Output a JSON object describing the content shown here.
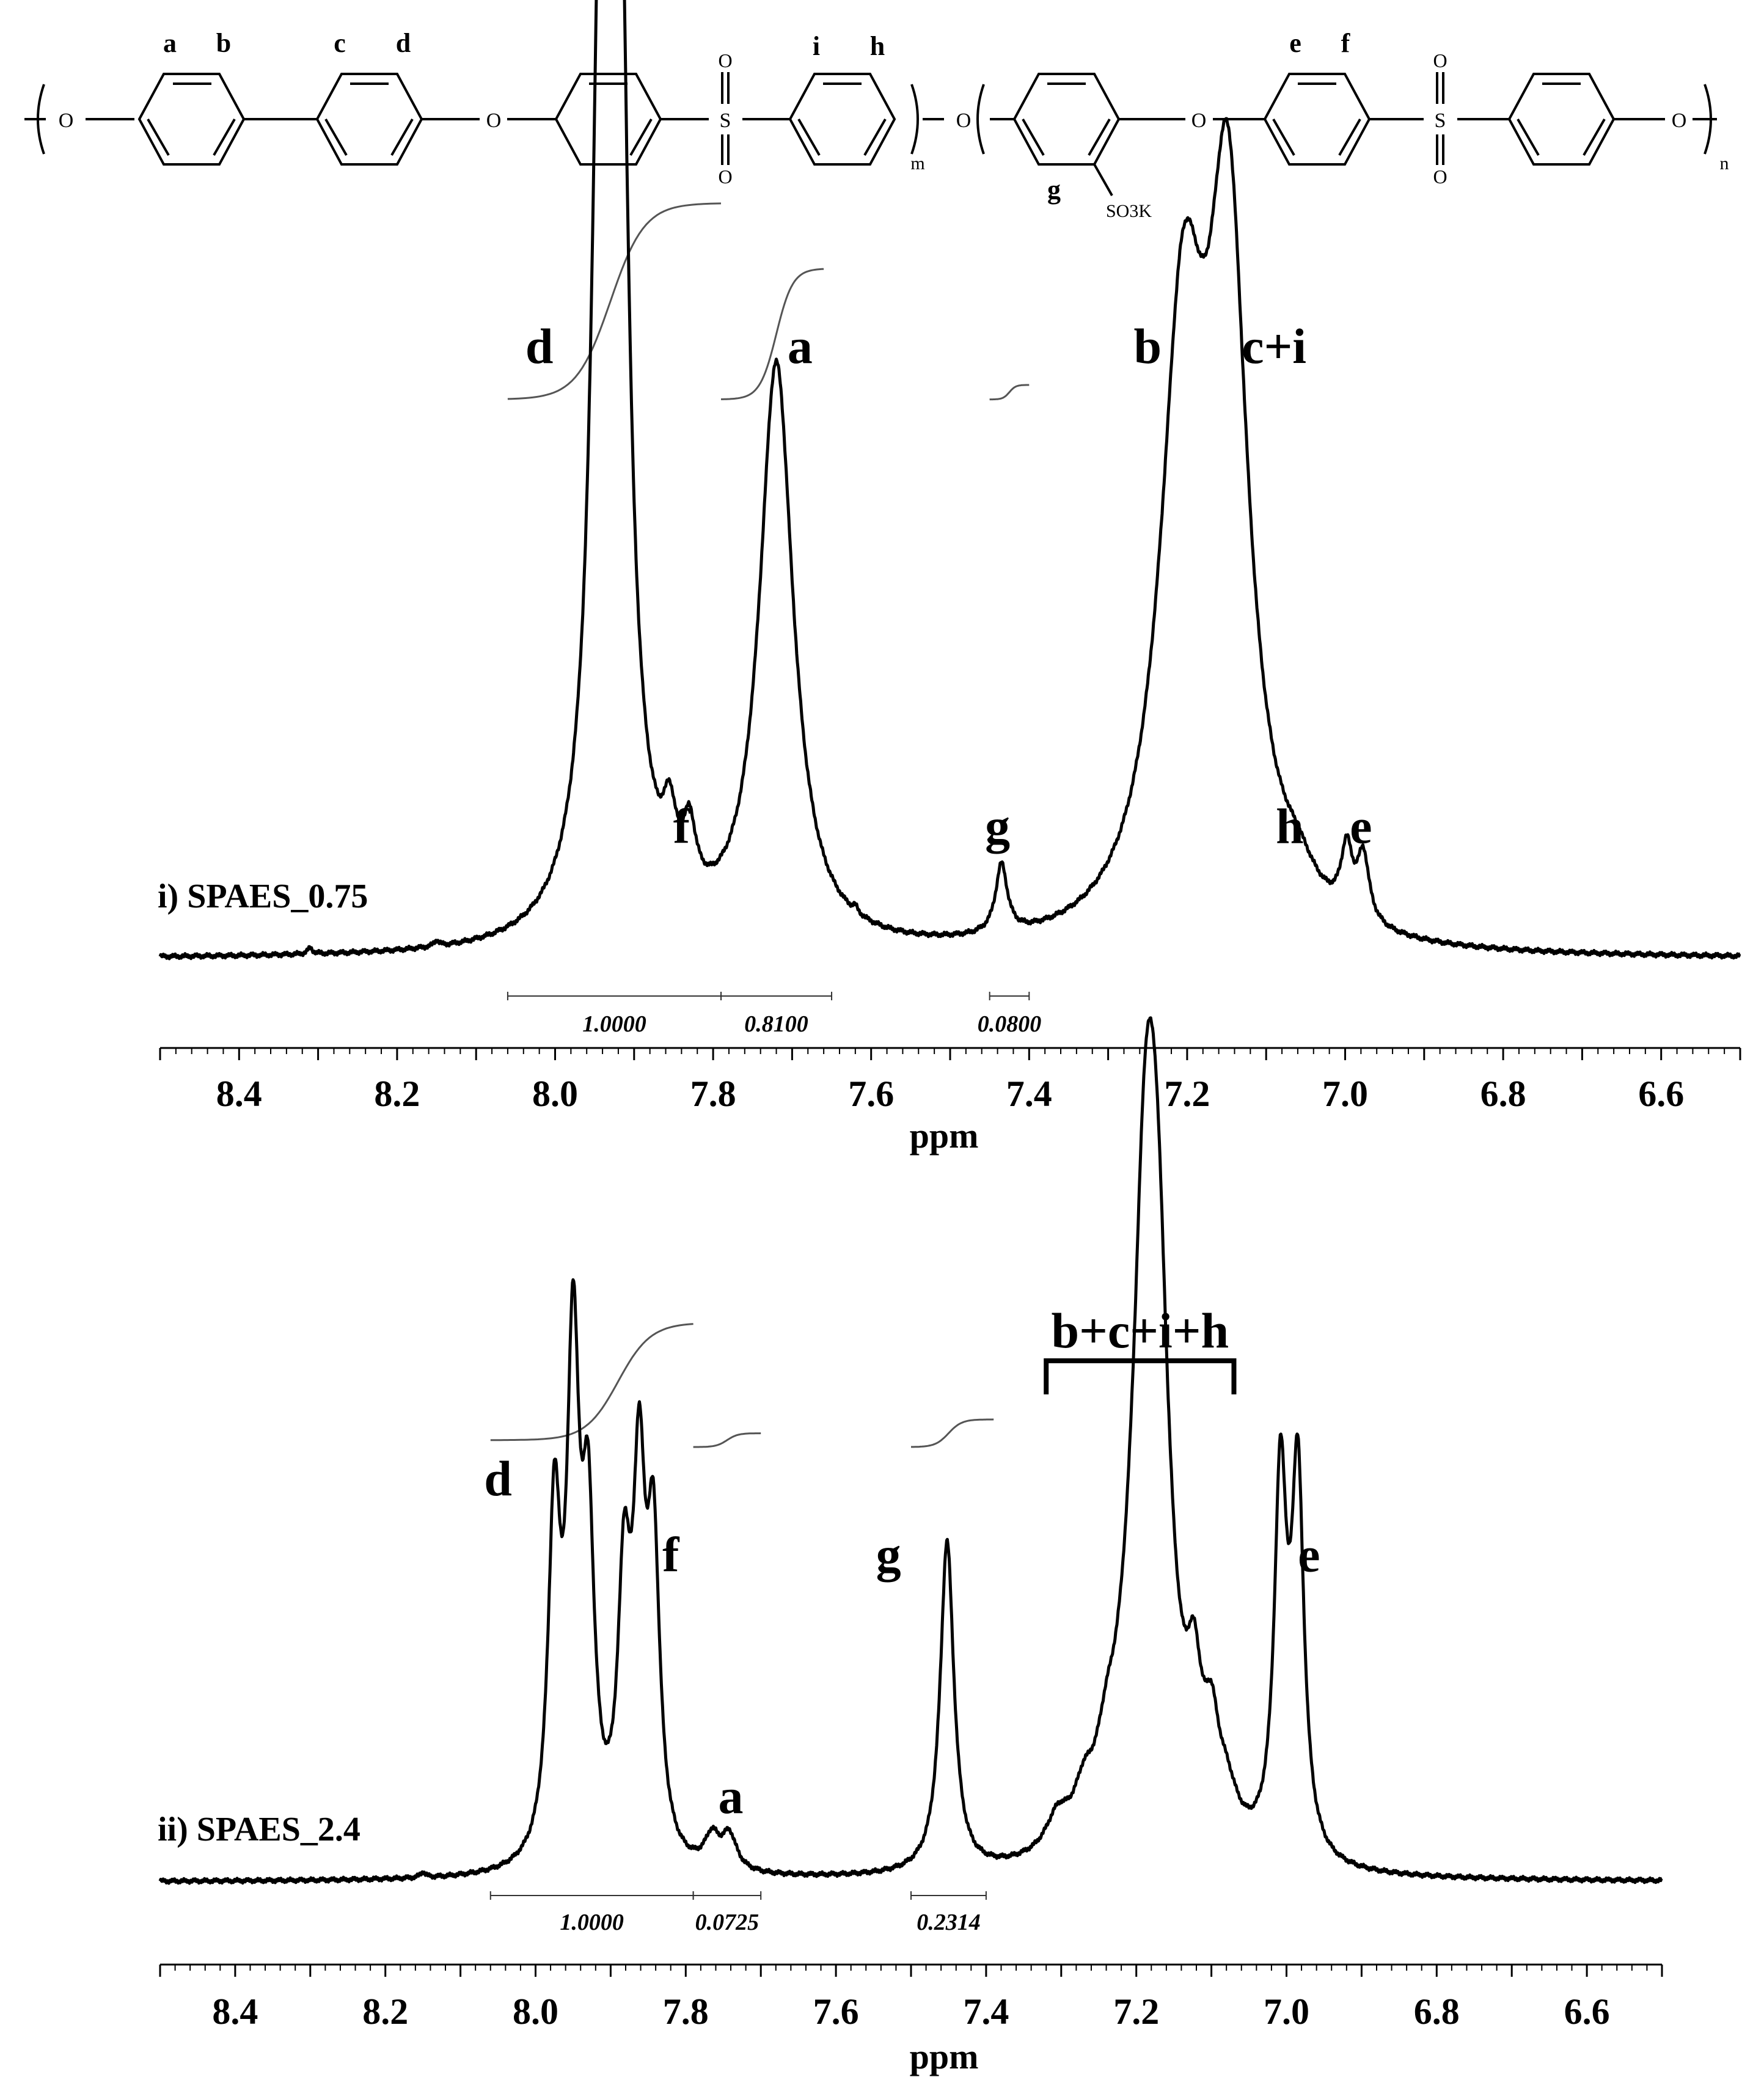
{
  "structure": {
    "proton_labels": [
      "a",
      "b",
      "c",
      "d",
      "i",
      "h",
      "e",
      "f",
      "g"
    ],
    "oxygen": "O",
    "sulfur": "S",
    "sulfonate": "SO3K",
    "repeat_m": "m",
    "repeat_n": "n"
  },
  "chart_data": [
    {
      "type": "line",
      "panel_label": "i) SPAES_0.75",
      "xlabel": "ppm",
      "xlim": [
        8.5,
        6.5
      ],
      "x_reversed": true,
      "x_ticks": [
        8.4,
        8.2,
        8.0,
        7.8,
        7.6,
        7.4,
        7.2,
        7.0,
        6.8,
        6.6
      ],
      "x_tick_labels": [
        "8.4",
        "8.2",
        "8.0",
        "7.8",
        "7.6",
        "7.4",
        "7.2",
        "7.0",
        "6.8",
        "6.6"
      ],
      "grid": false,
      "baseline_noise_positions": [
        8.31,
        8.15,
        7.62
      ],
      "peaks": [
        {
          "label": "d",
          "ppm": 7.943,
          "height": 1.0,
          "width": 0.012
        },
        {
          "label": "d",
          "ppm": 7.918,
          "height": 1.08,
          "width": 0.012
        },
        {
          "label": "d",
          "ppm": 7.93,
          "height": 0.4,
          "width": 0.03
        },
        {
          "label": "f",
          "ppm": 7.855,
          "height": 0.09,
          "width": 0.01
        },
        {
          "label": "f",
          "ppm": 7.83,
          "height": 0.09,
          "width": 0.01
        },
        {
          "label": "a",
          "ppm": 7.72,
          "height": 0.8,
          "width": 0.026
        },
        {
          "label": "g",
          "ppm": 7.435,
          "height": 0.095,
          "width": 0.009
        },
        {
          "label": "b",
          "ppm": 7.205,
          "height": 0.8,
          "width": 0.035
        },
        {
          "label": "c+i",
          "ppm": 7.148,
          "height": 0.92,
          "width": 0.03
        },
        {
          "label": "h",
          "ppm": 7.06,
          "height": 0.04,
          "width": 0.028
        },
        {
          "label": "e",
          "ppm": 6.998,
          "height": 0.09,
          "width": 0.009
        },
        {
          "label": "e",
          "ppm": 6.977,
          "height": 0.09,
          "width": 0.009
        }
      ],
      "peak_labels": [
        {
          "text": "d",
          "ppm": 8.02,
          "level": 0.82,
          "size": 82
        },
        {
          "text": "a",
          "ppm": 7.69,
          "level": 0.82,
          "size": 82
        },
        {
          "text": "b",
          "ppm": 7.25,
          "level": 0.82,
          "size": 82
        },
        {
          "text": "c+i",
          "ppm": 7.09,
          "level": 0.82,
          "size": 82
        },
        {
          "text": "f",
          "ppm": 7.84,
          "level": 0.16,
          "size": 82
        },
        {
          "text": "g",
          "ppm": 7.44,
          "level": 0.16,
          "size": 82
        },
        {
          "text": "h",
          "ppm": 7.07,
          "level": 0.16,
          "size": 82
        },
        {
          "text": "e",
          "ppm": 6.98,
          "level": 0.16,
          "size": 82
        }
      ],
      "integral_curves": [
        {
          "from": 8.06,
          "to": 7.79,
          "rise_at": 7.93,
          "low": 0.77,
          "high": 1.04
        },
        {
          "from": 7.79,
          "to": 7.66,
          "rise_at": 7.72,
          "low": 0.77,
          "high": 0.95
        },
        {
          "from": 7.45,
          "to": 7.4,
          "rise_at": 7.425,
          "low": 0.77,
          "high": 0.79
        }
      ],
      "integrals": [
        {
          "from": 8.06,
          "to": 7.79,
          "value": "1.0000"
        },
        {
          "from": 7.79,
          "to": 7.65,
          "value": "0.8100"
        },
        {
          "from": 7.45,
          "to": 7.4,
          "value": "0.0800"
        }
      ]
    },
    {
      "type": "line",
      "panel_label": "ii) SPAES_2.4",
      "xlabel": "ppm",
      "xlim": [
        8.5,
        6.5
      ],
      "x_reversed": true,
      "x_ticks": [
        8.4,
        8.2,
        8.0,
        7.8,
        7.6,
        7.4,
        7.2,
        7.0,
        6.8,
        6.6
      ],
      "x_tick_labels": [
        "8.4",
        "8.2",
        "8.0",
        "7.8",
        "7.6",
        "7.4",
        "7.2",
        "7.0",
        "6.8",
        "6.6"
      ],
      "grid": false,
      "baseline_noise_positions": [
        8.15
      ],
      "peaks": [
        {
          "label": "d",
          "ppm": 7.975,
          "height": 0.48,
          "width": 0.01
        },
        {
          "label": "d",
          "ppm": 7.95,
          "height": 0.7,
          "width": 0.01
        },
        {
          "label": "d",
          "ppm": 7.93,
          "height": 0.44,
          "width": 0.01
        },
        {
          "label": "f",
          "ppm": 7.882,
          "height": 0.37,
          "width": 0.01
        },
        {
          "label": "f",
          "ppm": 7.862,
          "height": 0.5,
          "width": 0.01
        },
        {
          "label": "f",
          "ppm": 7.843,
          "height": 0.43,
          "width": 0.01
        },
        {
          "label": "a",
          "ppm": 7.765,
          "height": 0.045,
          "width": 0.012
        },
        {
          "label": "a",
          "ppm": 7.742,
          "height": 0.05,
          "width": 0.012
        },
        {
          "label": "g",
          "ppm": 7.452,
          "height": 0.48,
          "width": 0.011
        },
        {
          "label": "",
          "ppm": 7.305,
          "height": 0.045,
          "width": 0.018
        },
        {
          "label": "",
          "ppm": 7.27,
          "height": 0.05,
          "width": 0.015
        },
        {
          "label": "",
          "ppm": 7.24,
          "height": 0.06,
          "width": 0.015
        },
        {
          "label": "b+c+i+h",
          "ppm": 7.188,
          "height": 0.68,
          "width": 0.02
        },
        {
          "label": "b+c+i+h",
          "ppm": 7.172,
          "height": 0.6,
          "width": 0.02
        },
        {
          "label": "b+c+i+h",
          "ppm": 7.2,
          "height": 0.15,
          "width": 0.04
        },
        {
          "label": "b+c+i+h",
          "ppm": 7.123,
          "height": 0.16,
          "width": 0.012
        },
        {
          "label": "b+c+i+h",
          "ppm": 7.1,
          "height": 0.12,
          "width": 0.012
        },
        {
          "label": "b+c+i+h",
          "ppm": 7.08,
          "height": 0.06,
          "width": 0.018
        },
        {
          "label": "e",
          "ppm": 7.008,
          "height": 0.53,
          "width": 0.01
        },
        {
          "label": "e",
          "ppm": 6.985,
          "height": 0.54,
          "width": 0.01
        }
      ],
      "peak_labels": [
        {
          "text": "d",
          "ppm": 8.05,
          "level": 0.56,
          "size": 82
        },
        {
          "text": "f",
          "ppm": 7.82,
          "level": 0.45,
          "size": 82
        },
        {
          "text": "a",
          "ppm": 7.74,
          "level": 0.1,
          "size": 82
        },
        {
          "text": "g",
          "ppm": 7.53,
          "level": 0.45,
          "size": 82
        },
        {
          "text": "e",
          "ppm": 6.97,
          "level": 0.45,
          "size": 82
        },
        {
          "text": "b+c+i+h",
          "ppm": 7.2,
          "level": 0.81,
          "size": 82
        }
      ],
      "bracket": {
        "from": 7.32,
        "to": 7.07,
        "label": "b+c+i+h"
      },
      "integral_curves": [
        {
          "from": 8.06,
          "to": 7.79,
          "rise_at": 7.89,
          "low": 0.64,
          "high": 0.81
        },
        {
          "from": 7.79,
          "to": 7.7,
          "rise_at": 7.745,
          "low": 0.63,
          "high": 0.65
        },
        {
          "from": 7.5,
          "to": 7.39,
          "rise_at": 7.45,
          "low": 0.63,
          "high": 0.67
        }
      ],
      "integrals": [
        {
          "from": 8.06,
          "to": 7.79,
          "value": "1.0000"
        },
        {
          "from": 7.79,
          "to": 7.7,
          "value": "0.0725"
        },
        {
          "from": 7.5,
          "to": 7.4,
          "value": "0.2314"
        }
      ]
    }
  ]
}
